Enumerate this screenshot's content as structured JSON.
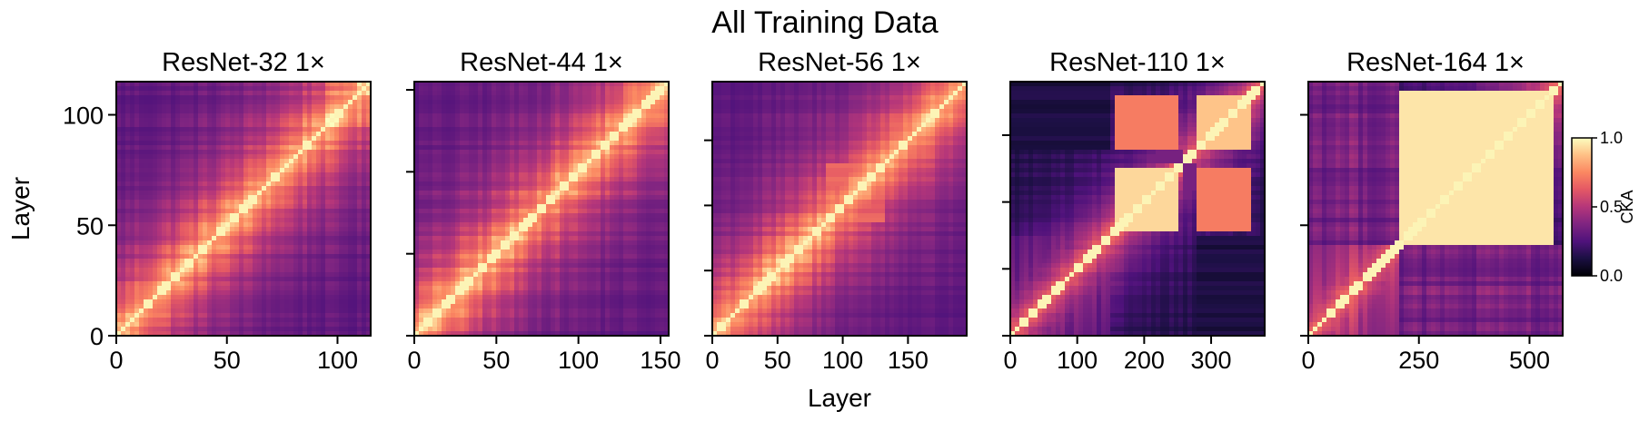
{
  "figure_title": "All Training Data",
  "colors": {
    "colormap": "magma",
    "background": "#ffffff",
    "axes": "#000000"
  },
  "chart_data": [
    {
      "type": "heatmap",
      "title": "ResNet-32 1×",
      "xlabel": "",
      "ylabel": "Layer",
      "n_layers": 115,
      "xlim": [
        0,
        115
      ],
      "ylim": [
        0,
        115
      ],
      "xticks": [
        0,
        50,
        100
      ],
      "yticks": [
        0,
        50,
        100
      ],
      "show_ytick_labels": true,
      "pattern": "diagonal"
    },
    {
      "type": "heatmap",
      "title": "ResNet-44 1×",
      "xlabel": "",
      "ylabel": "",
      "n_layers": 155,
      "xlim": [
        0,
        155
      ],
      "ylim": [
        0,
        155
      ],
      "xticks": [
        0,
        50,
        100,
        150
      ],
      "yticks": [
        0,
        50,
        100,
        150
      ],
      "show_ytick_labels": false,
      "pattern": "diagonal"
    },
    {
      "type": "heatmap",
      "title": "ResNet-56 1×",
      "xlabel": "Layer",
      "ylabel": "",
      "n_layers": 195,
      "xlim": [
        0,
        195
      ],
      "ylim": [
        0,
        195
      ],
      "xticks": [
        0,
        50,
        100,
        150
      ],
      "yticks": [
        0,
        50,
        100,
        150
      ],
      "show_ytick_labels": false,
      "pattern": "diagonal_mid_block",
      "blocks": [
        [
          88,
          132,
          0.55
        ]
      ]
    },
    {
      "type": "heatmap",
      "title": "ResNet-110 1×",
      "xlabel": "",
      "ylabel": "",
      "n_layers": 380,
      "xlim": [
        0,
        380
      ],
      "ylim": [
        0,
        380
      ],
      "xticks": [
        0,
        100,
        200,
        300
      ],
      "yticks": [
        0,
        100,
        200,
        300
      ],
      "show_ytick_labels": false,
      "pattern": "block",
      "blocks": [
        [
          155,
          250,
          0.92
        ],
        [
          280,
          360,
          0.88
        ],
        [
          155,
          250,
          0.72,
          280,
          360
        ]
      ]
    },
    {
      "type": "heatmap",
      "title": "ResNet-164 1×",
      "xlabel": "",
      "ylabel": "",
      "n_layers": 575,
      "xlim": [
        0,
        575
      ],
      "ylim": [
        0,
        575
      ],
      "xticks": [
        0,
        250,
        500
      ],
      "yticks": [
        0,
        250,
        500
      ],
      "show_ytick_labels": false,
      "pattern": "large_block",
      "blocks": [
        [
          210,
          550,
          0.95
        ]
      ]
    }
  ],
  "colorbar": {
    "label": "CKA",
    "ticks": [
      "0.0",
      "0.5",
      "1.0"
    ],
    "range": [
      0,
      1
    ]
  }
}
